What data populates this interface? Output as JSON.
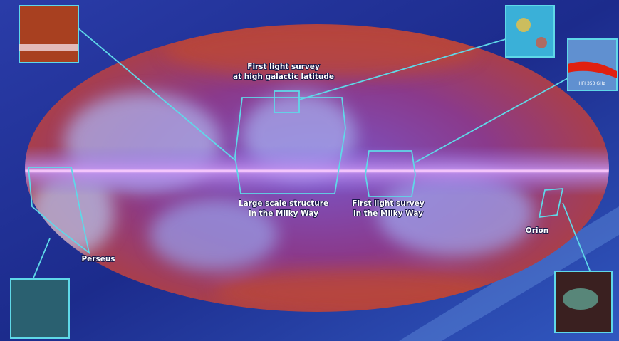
{
  "annotations": [
    {
      "name": "high-latitude",
      "lines": [
        "First light survey",
        "at high galactic latitude"
      ]
    },
    {
      "name": "large-scale",
      "lines": [
        "Large scale structure",
        "in the Milky Way"
      ]
    },
    {
      "name": "milky-way-survey",
      "lines": [
        "First light survey",
        "in the Milky Way"
      ]
    },
    {
      "name": "orion",
      "lines": [
        "Orion"
      ]
    },
    {
      "name": "perseus",
      "lines": [
        "Perseus"
      ]
    }
  ],
  "inset_label": "HFI 353 GHz"
}
